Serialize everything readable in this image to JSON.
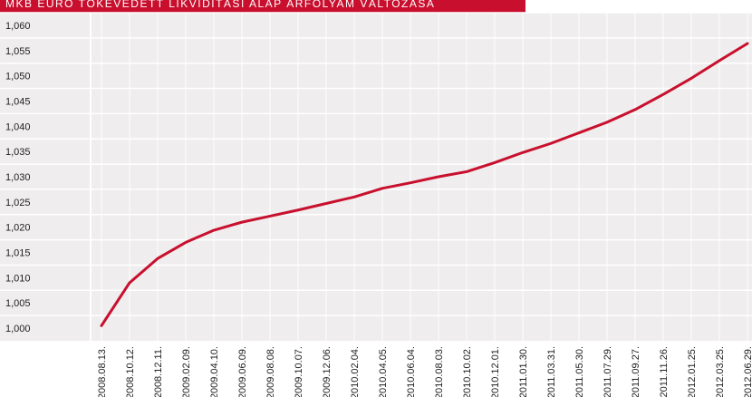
{
  "chart_data": {
    "type": "line",
    "title": "MKB EURÓ TŐKEVÉDETT LIKVIDITÁSI ALAP ÁRFOLYAM VÁLTOZÁSA",
    "categories": [
      "2008.08.13.",
      "2008.10.12.",
      "2008.12.11.",
      "2009.02.09.",
      "2009.04.10.",
      "2009.06.09.",
      "2009.08.08.",
      "2009.10.07.",
      "2009.12.06.",
      "2010.02.04.",
      "2010.04.05.",
      "2010.06.04.",
      "2010.08.03.",
      "2010.10.02.",
      "2010.12.01.",
      "2011.01.30.",
      "2011.03.31.",
      "2011.05.30.",
      "2011.07.29.",
      "2011.09.27.",
      "2011.11.26.",
      "2012.01.25.",
      "2012.03.25.",
      "2012.06.29."
    ],
    "values": [
      1.0005,
      1.009,
      1.0138,
      1.017,
      1.0194,
      1.021,
      1.0222,
      1.0234,
      1.0247,
      1.026,
      1.0277,
      1.0288,
      1.03,
      1.031,
      1.0328,
      1.0348,
      1.0366,
      1.0387,
      1.0408,
      1.0433,
      1.0463,
      1.0495,
      1.053,
      1.0564
    ],
    "color": "#c8102e",
    "ylim": [
      0.9975,
      1.0625
    ],
    "yticks": [
      {
        "value": 1.0,
        "label": "1,000"
      },
      {
        "value": 1.005,
        "label": "1,005"
      },
      {
        "value": 1.01,
        "label": "1,010"
      },
      {
        "value": 1.015,
        "label": "1,015"
      },
      {
        "value": 1.02,
        "label": "1,020"
      },
      {
        "value": 1.025,
        "label": "1,025"
      },
      {
        "value": 1.03,
        "label": "1,030"
      },
      {
        "value": 1.035,
        "label": "1,035"
      },
      {
        "value": 1.04,
        "label": "1,040"
      },
      {
        "value": 1.045,
        "label": "1,045"
      },
      {
        "value": 1.05,
        "label": "1,050"
      },
      {
        "value": 1.055,
        "label": "1,055"
      },
      {
        "value": 1.06,
        "label": "1,060"
      }
    ],
    "grid": true
  }
}
